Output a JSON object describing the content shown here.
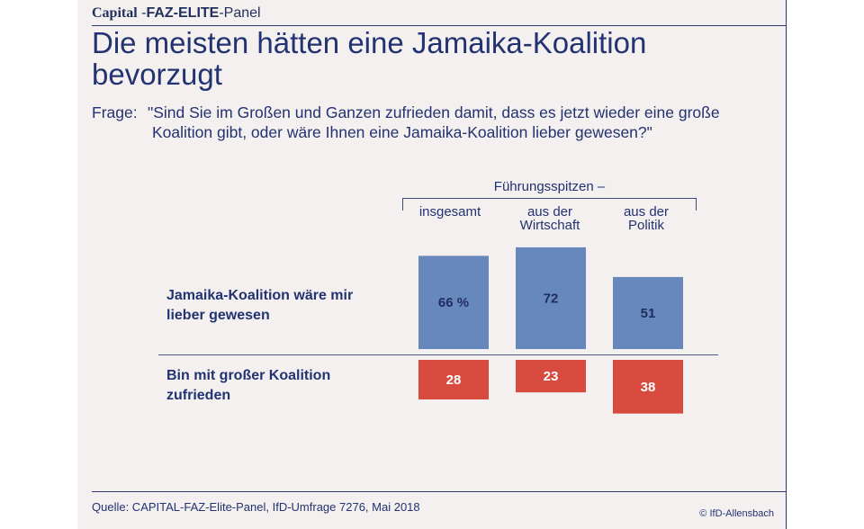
{
  "brand": {
    "part1": "Capital",
    "part2": " -",
    "part3": "FAZ-ELITE",
    "part4": "-Panel"
  },
  "title_lines": [
    "Die meisten hätten eine Jamaika-Koalition",
    "bevorzugt"
  ],
  "question": {
    "label": "Frage:",
    "line1": "\"Sind Sie im Großen und Ganzen zufrieden damit, dass es jetzt wieder eine große",
    "line2": "Koalition gibt, oder wäre Ihnen eine Jamaika-Koalition lieber gewesen?\""
  },
  "colors": {
    "positive": "#6788bd",
    "negative": "#d84a3e",
    "text": "#233270",
    "panel": "#f3f0ef"
  },
  "chart_data": {
    "type": "bar",
    "group_label": "Führungsspitzen –",
    "categories": [
      {
        "lines": [
          "insgesamt"
        ]
      },
      {
        "lines": [
          "aus der",
          "Wirtschaft"
        ]
      },
      {
        "lines": [
          "aus der",
          "Politik"
        ]
      }
    ],
    "series": [
      {
        "name_lines": [
          "Jamaika-Koalition wäre mir",
          "lieber gewesen"
        ],
        "values": [
          66,
          72,
          51
        ],
        "labels": [
          "66 %",
          "72",
          "51"
        ],
        "direction": "up"
      },
      {
        "name_lines": [
          "Bin mit großer Koalition",
          "zufrieden"
        ],
        "values": [
          28,
          23,
          38
        ],
        "labels": [
          "28",
          "23",
          "38"
        ],
        "direction": "down"
      }
    ],
    "unit": "%"
  },
  "footer": {
    "source": "Quelle: CAPITAL-FAZ-Elite-Panel, IfD-Umfrage 7276, Mai 2018",
    "copyright": "© IfD-Allensbach"
  }
}
